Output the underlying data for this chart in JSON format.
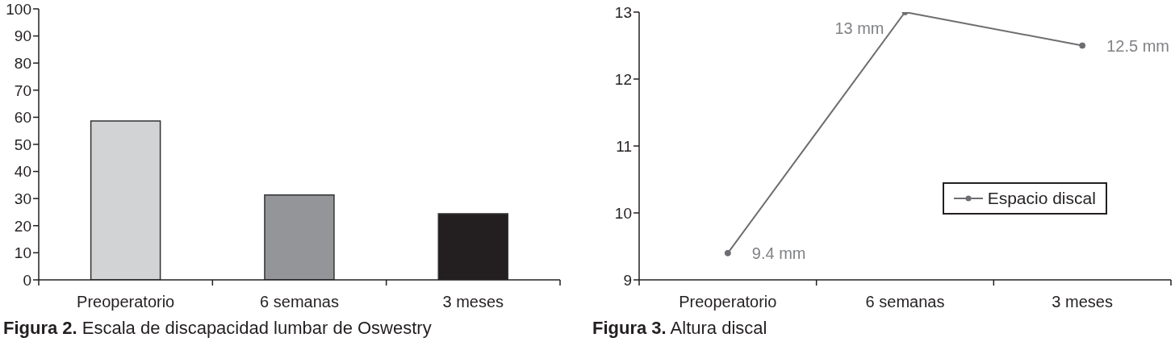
{
  "chart_data": [
    {
      "type": "bar",
      "title": "Figura 2. Escala de discapacidad lumbar de Oswestry",
      "categories": [
        "Preoperatorio",
        "6 semanas",
        "3 meses"
      ],
      "values": [
        58.6,
        31.3,
        24.4
      ],
      "colors": [
        "#d1d3d4",
        "#939598",
        "#231f20"
      ],
      "ylim": [
        0,
        100
      ],
      "yticks": [
        0,
        10,
        20,
        30,
        40,
        50,
        60,
        70,
        80,
        90,
        100
      ]
    },
    {
      "type": "line",
      "title": "Figura 3. Altura discal",
      "categories": [
        "Preoperatorio",
        "6 semanas",
        "3 meses"
      ],
      "series": [
        {
          "name": "Espacio discal",
          "color": "#6d6e71",
          "values": [
            9.4,
            13,
            12.5
          ],
          "value_labels": [
            "9.4 mm",
            "13 mm",
            "12.5 mm"
          ]
        }
      ],
      "ylim": [
        9,
        13
      ],
      "yticks": [
        9,
        10,
        11,
        12,
        13
      ],
      "legend": "right",
      "marker": "circle"
    }
  ]
}
